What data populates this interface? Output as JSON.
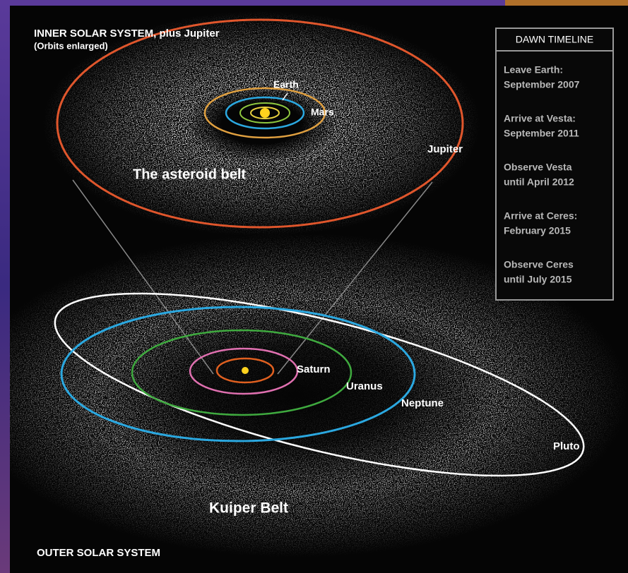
{
  "header": {
    "title": "INNER SOLAR SYSTEM, plus Jupiter",
    "subtitle": "(Orbits enlarged)"
  },
  "inner_labels": {
    "earth": "Earth",
    "mars": "Mars",
    "jupiter": "Jupiter",
    "belt": "The asteroid belt"
  },
  "outer_labels": {
    "saturn": "Saturn",
    "uranus": "Uranus",
    "neptune": "Neptune",
    "pluto": "Pluto",
    "belt": "Kuiper Belt"
  },
  "footer": "OUTER SOLAR SYSTEM",
  "timeline": {
    "title": "DAWN TIMELINE",
    "items": [
      {
        "event": "Leave Earth:",
        "date": "September 2007"
      },
      {
        "event": "Arrive at Vesta:",
        "date": "September 2011"
      },
      {
        "event": "Observe Vesta",
        "date": "until April 2012"
      },
      {
        "event": "Arrive at Ceres:",
        "date": "February 2015"
      },
      {
        "event": "Observe Ceres",
        "date": "until July 2015"
      }
    ]
  }
}
